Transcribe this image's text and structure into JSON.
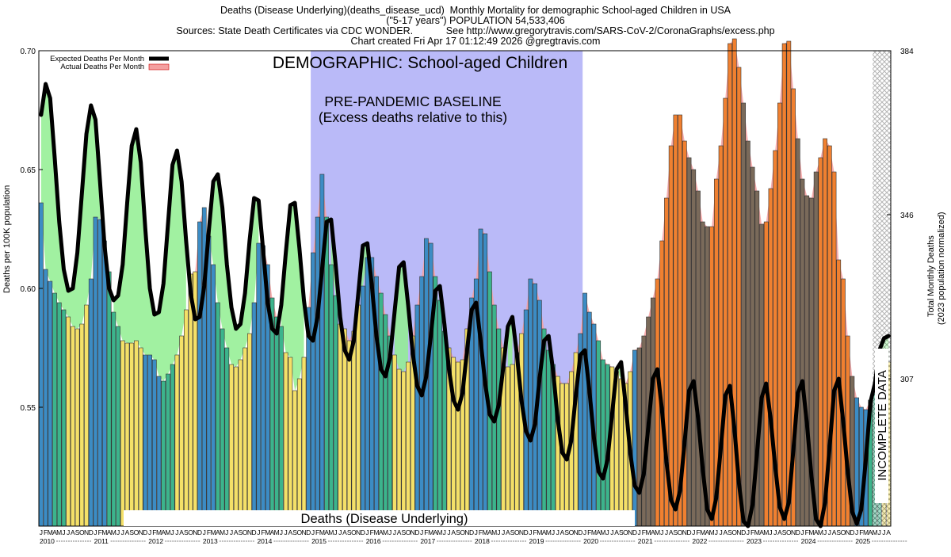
{
  "header": {
    "line1": "Deaths (Disease Underlying)(deaths_disease_ucd)  Monthly Mortality for demographic School-aged Children in USA",
    "line2": "(\"5-17 years\") POPULATION 54,533,406",
    "line3": "Sources: State Death Certificates via CDC WONDER.            See http://www.gregorytravis.com/SARS-CoV-2/CoronaGraphs/excess.php",
    "line4": "Chart created Fri Apr 17 01:12:49 2026 @gregtravis.com"
  },
  "colors": {
    "expected_line": "#000000",
    "actual_area": "#f4a0a0",
    "excess_fill_below": "#90ee90",
    "baseline_band": "#babaf8",
    "bar_blue": "#3c8cc4",
    "bar_yellow": "#f4e068",
    "bar_orange": "#f08030",
    "bar_brown": "#7a6a5a",
    "bar_green": "#3cb48c",
    "incomplete_hatch": "#888888"
  },
  "chart_data": {
    "type": "bar",
    "title": "DEMOGRAPHIC: School-aged Children",
    "baseline_label_1": "PRE-PANDEMIC BASELINE",
    "baseline_label_2": "(Excess deaths relative to this)",
    "baseline_range": [
      "2015-01",
      "2019-12"
    ],
    "bottom_label": "Deaths (Disease Underlying)",
    "incomplete_label": "INCOMPLETE DATA",
    "incomplete_from": "2025-05",
    "ylabel_left": "Deaths per 100K population",
    "ylabel_right_1": "Total Monthly Deaths",
    "ylabel_right_2": "(2023 population normalized)",
    "ylim": [
      0.5,
      0.7
    ],
    "yticks_left": [
      0.55,
      0.6,
      0.65,
      0.7
    ],
    "yticks_left_labels": [
      "0.55",
      "0.60",
      "0.65",
      "0.70"
    ],
    "yticks_right": [
      307,
      346,
      384
    ],
    "yticks_right_labels": [
      "307",
      "346",
      "384"
    ],
    "month_letters": "JFMAMJJASOND",
    "year_labels": [
      "2010",
      "2011",
      "2012",
      "2013",
      "2014",
      "2015",
      "2016",
      "2017",
      "2018",
      "2019",
      "2020",
      "2021",
      "2022",
      "2023",
      "2024",
      "2025"
    ],
    "legend": {
      "position": "top-left",
      "expected": "Expected Deaths Per Month",
      "actual": "Actual Deaths Per Month"
    },
    "start": "2010-01",
    "actual": [
      0.636,
      0.608,
      0.603,
      0.598,
      0.594,
      0.591,
      0.588,
      0.584,
      0.583,
      0.585,
      0.593,
      0.604,
      0.63,
      0.629,
      0.62,
      0.607,
      0.59,
      0.584,
      0.578,
      0.577,
      0.577,
      0.578,
      0.575,
      0.572,
      0.572,
      0.57,
      0.563,
      0.561,
      0.564,
      0.568,
      0.572,
      0.58,
      0.591,
      0.606,
      0.607,
      0.628,
      0.634,
      0.622,
      0.61,
      0.594,
      0.583,
      0.575,
      0.568,
      0.567,
      0.57,
      0.575,
      0.581,
      0.594,
      0.619,
      0.618,
      0.61,
      0.596,
      0.588,
      0.584,
      0.573,
      0.571,
      0.557,
      0.562,
      0.571,
      0.592,
      0.615,
      0.63,
      0.648,
      0.63,
      0.61,
      0.597,
      0.585,
      0.583,
      0.578,
      0.582,
      0.593,
      0.601,
      0.613,
      0.613,
      0.605,
      0.598,
      0.589,
      0.58,
      0.572,
      0.566,
      0.565,
      0.569,
      0.58,
      0.593,
      0.605,
      0.621,
      0.619,
      0.605,
      0.595,
      0.582,
      0.575,
      0.571,
      0.569,
      0.57,
      0.583,
      0.596,
      0.604,
      0.625,
      0.623,
      0.607,
      0.593,
      0.583,
      0.575,
      0.567,
      0.568,
      0.573,
      0.581,
      0.591,
      0.604,
      0.602,
      0.595,
      0.583,
      0.574,
      0.568,
      0.563,
      0.56,
      0.56,
      0.565,
      0.573,
      0.581,
      0.598,
      0.59,
      0.585,
      0.578,
      0.57,
      0.568,
      0.567,
      0.565,
      0.562,
      0.56,
      0.565,
      0.574,
      0.575,
      0.58,
      0.588,
      0.596,
      0.604,
      0.62,
      0.638,
      0.66,
      0.673,
      0.673,
      0.662,
      0.655,
      0.65,
      0.641,
      0.628,
      0.626,
      0.626,
      0.646,
      0.66,
      0.68,
      0.703,
      0.705,
      0.693,
      0.678,
      0.662,
      0.651,
      0.641,
      0.627,
      0.628,
      0.642,
      0.658,
      0.678,
      0.703,
      0.704,
      0.684,
      0.663,
      0.646,
      0.639,
      0.638,
      0.649,
      0.655,
      0.663,
      0.66,
      0.649,
      0.612,
      0.604,
      0.58,
      0.563,
      0.554,
      0.55,
      0.549,
      0.553,
      0.556,
      0.56,
      0.564,
      0.569
    ],
    "expected": [
      0.673,
      0.686,
      0.68,
      0.655,
      0.628,
      0.608,
      0.599,
      0.6,
      0.615,
      0.64,
      0.665,
      0.677,
      0.671,
      0.645,
      0.618,
      0.6,
      0.595,
      0.597,
      0.61,
      0.636,
      0.66,
      0.667,
      0.653,
      0.625,
      0.6,
      0.589,
      0.59,
      0.602,
      0.627,
      0.652,
      0.658,
      0.645,
      0.62,
      0.598,
      0.587,
      0.588,
      0.601,
      0.624,
      0.645,
      0.648,
      0.634,
      0.61,
      0.592,
      0.583,
      0.585,
      0.598,
      0.62,
      0.638,
      0.637,
      0.616,
      0.594,
      0.583,
      0.581,
      0.593,
      0.615,
      0.635,
      0.636,
      0.617,
      0.595,
      0.58,
      0.578,
      0.588,
      0.608,
      0.628,
      0.629,
      0.61,
      0.588,
      0.574,
      0.57,
      0.578,
      0.598,
      0.618,
      0.619,
      0.601,
      0.58,
      0.566,
      0.563,
      0.571,
      0.59,
      0.609,
      0.611,
      0.593,
      0.573,
      0.559,
      0.555,
      0.563,
      0.58,
      0.599,
      0.601,
      0.585,
      0.566,
      0.553,
      0.549,
      0.556,
      0.574,
      0.591,
      0.594,
      0.578,
      0.56,
      0.547,
      0.544,
      0.551,
      0.567,
      0.584,
      0.588,
      0.572,
      0.553,
      0.54,
      0.536,
      0.543,
      0.562,
      0.578,
      0.58,
      0.565,
      0.545,
      0.531,
      0.528,
      0.536,
      0.555,
      0.572,
      0.574,
      0.557,
      0.537,
      0.523,
      0.52,
      0.528,
      0.547,
      0.566,
      0.569,
      0.551,
      0.531,
      0.517,
      0.514,
      0.522,
      0.542,
      0.562,
      0.566,
      0.549,
      0.527,
      0.511,
      0.507,
      0.515,
      0.535,
      0.557,
      0.561,
      0.545,
      0.524,
      0.507,
      0.503,
      0.512,
      0.533,
      0.555,
      0.559,
      0.541,
      0.518,
      0.502,
      0.5,
      0.509,
      0.531,
      0.554,
      0.56,
      0.545,
      0.525,
      0.508,
      0.503,
      0.51,
      0.532,
      0.556,
      0.561,
      0.543,
      0.521,
      0.503,
      0.5,
      0.51,
      0.533,
      0.557,
      0.562,
      0.544,
      0.523,
      0.506,
      0.501,
      0.507,
      0.528,
      0.552,
      0.56,
      0.574,
      0.579,
      0.58
    ]
  }
}
